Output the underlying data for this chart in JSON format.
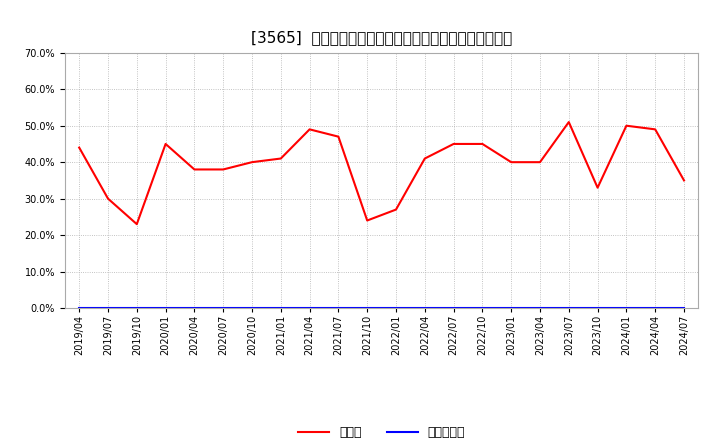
{
  "title": "[3565]  現預金、有利子負債の総資産に対する比率の推移",
  "x_labels": [
    "2019/04",
    "2019/07",
    "2019/10",
    "2020/01",
    "2020/04",
    "2020/07",
    "2020/10",
    "2021/01",
    "2021/04",
    "2021/07",
    "2021/10",
    "2022/01",
    "2022/04",
    "2022/07",
    "2022/10",
    "2023/01",
    "2023/04",
    "2023/07",
    "2023/10",
    "2024/01",
    "2024/04",
    "2024/07"
  ],
  "cash_values": [
    0.44,
    0.3,
    0.23,
    0.45,
    0.38,
    0.38,
    0.4,
    0.41,
    0.49,
    0.47,
    0.24,
    0.27,
    0.41,
    0.45,
    0.45,
    0.4,
    0.4,
    0.51,
    0.33,
    0.5,
    0.49,
    0.35
  ],
  "debt_values": [
    0.0,
    0.0,
    0.0,
    0.0,
    0.0,
    0.0,
    0.0,
    0.0,
    0.0,
    0.0,
    0.0,
    0.0,
    0.0,
    0.0,
    0.0,
    0.0,
    0.0,
    0.0,
    0.0,
    0.0,
    0.0,
    0.0
  ],
  "cash_color": "#ff0000",
  "debt_color": "#0000ff",
  "ylim": [
    0.0,
    0.7
  ],
  "yticks": [
    0.0,
    0.1,
    0.2,
    0.3,
    0.4,
    0.5,
    0.6,
    0.7
  ],
  "background_color": "#ffffff",
  "plot_bg_color": "#ffffff",
  "grid_color": "#b0b0b0",
  "legend_cash": "現預金",
  "legend_debt": "有利子負債",
  "title_fontsize": 11,
  "tick_fontsize": 7,
  "legend_fontsize": 9
}
